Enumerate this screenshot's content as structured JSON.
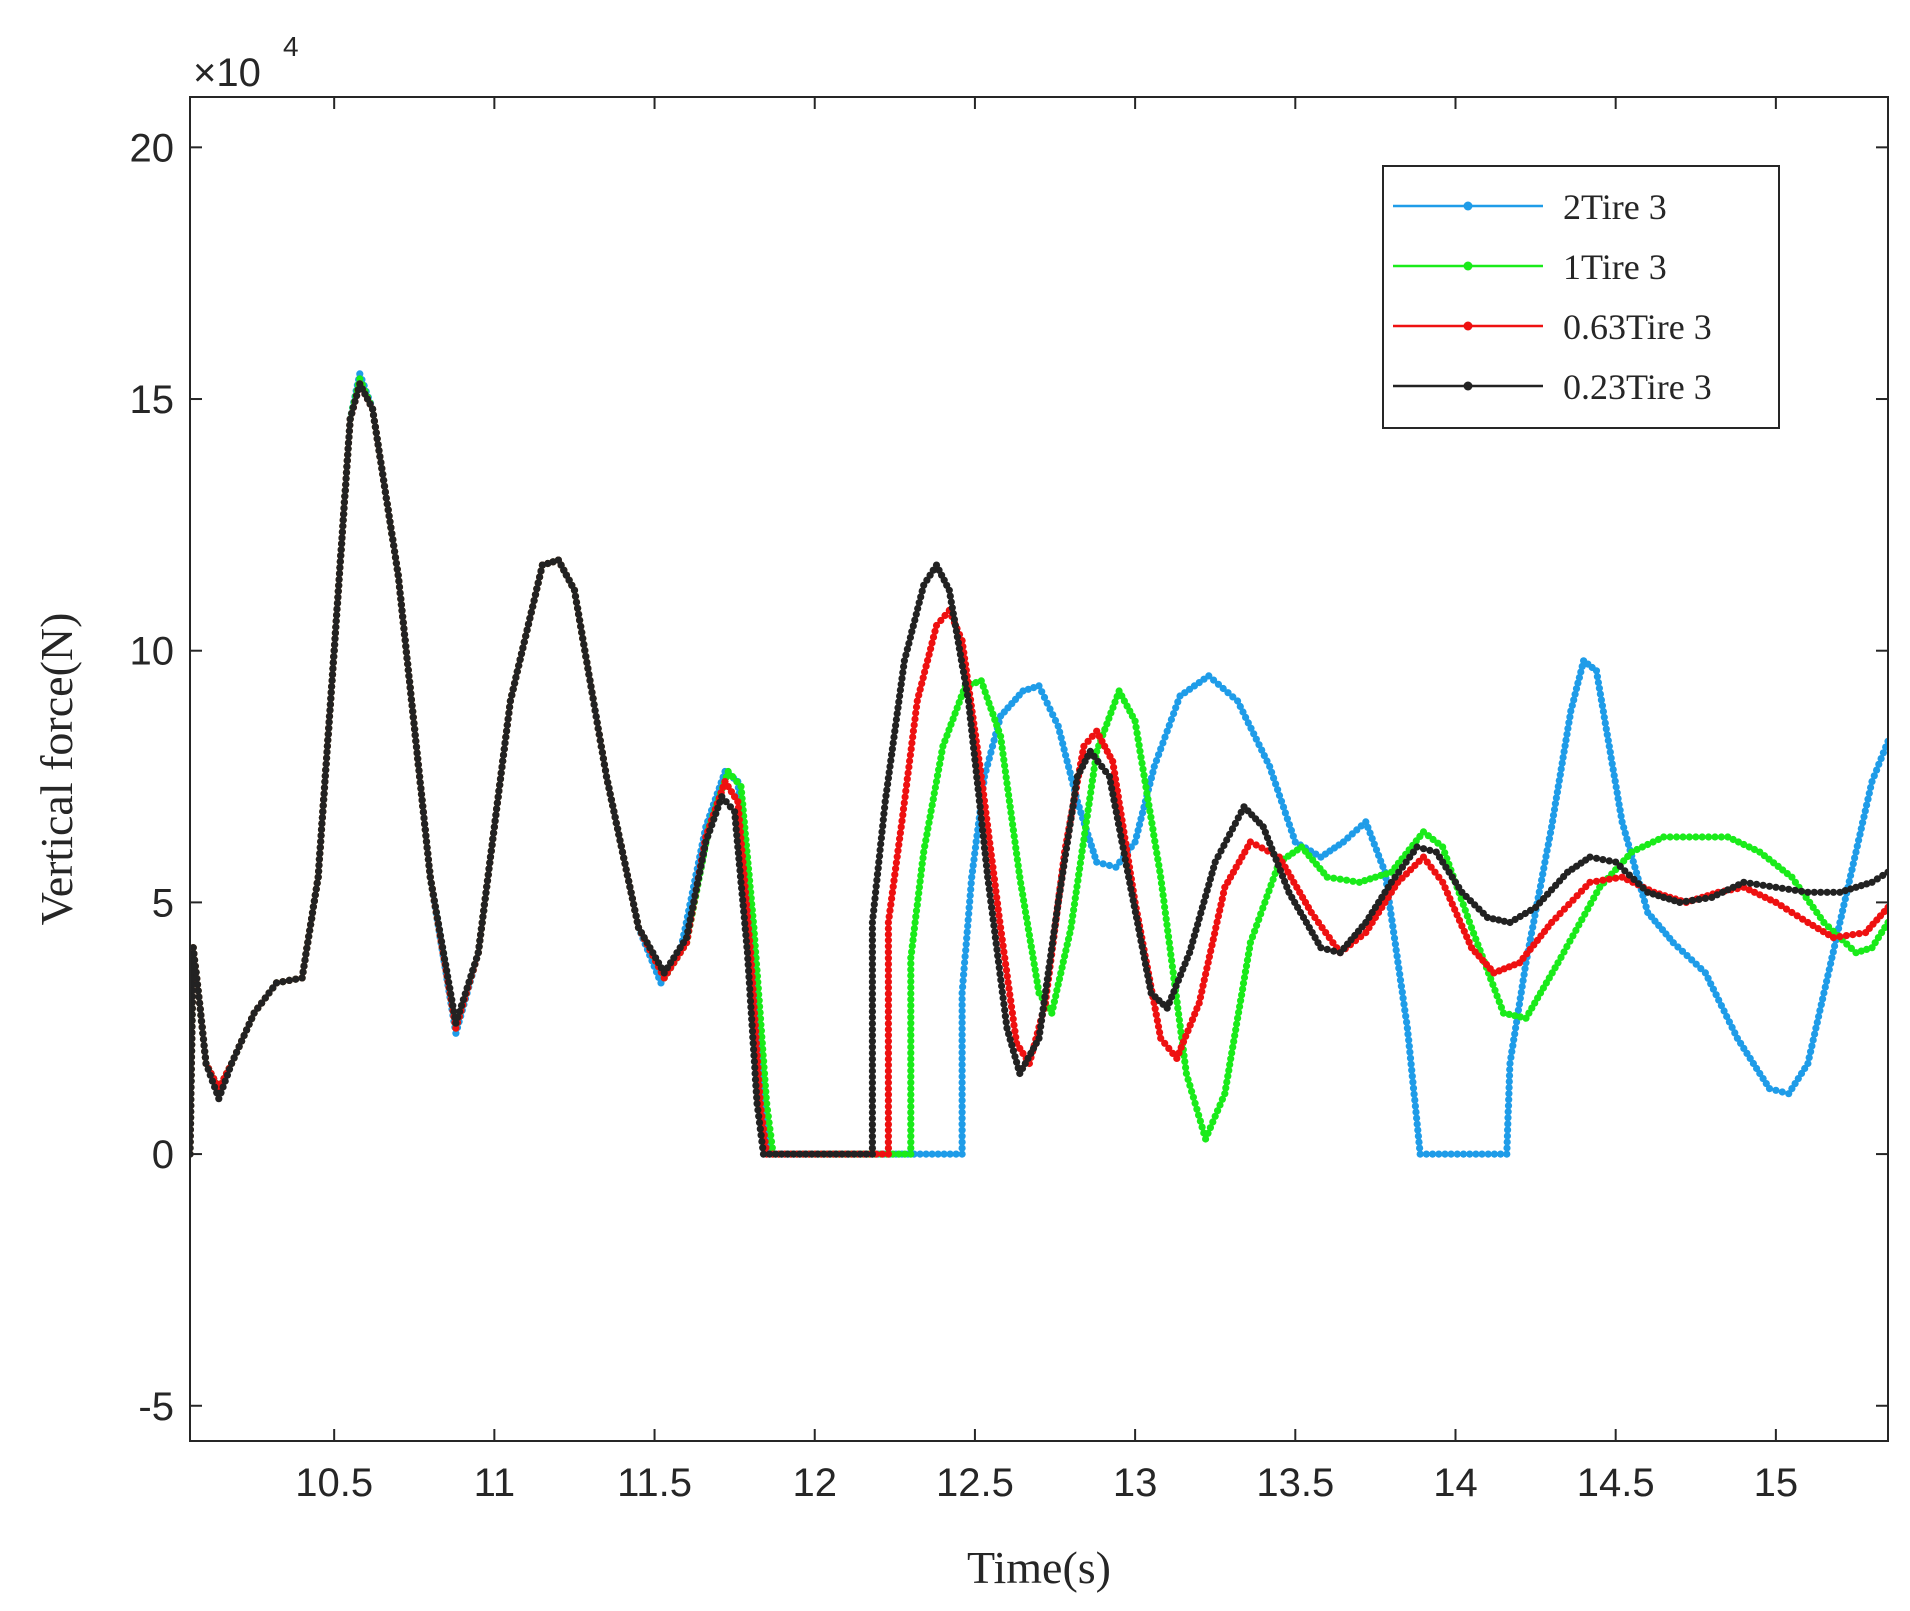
{
  "chart_data": {
    "type": "line",
    "title": "",
    "xlabel": "Time(s)",
    "ylabel": "Vertical force(N)",
    "y_multiplier": "×10",
    "y_multiplier_exponent": "4",
    "xlim": [
      10.05,
      15.35
    ],
    "ylim": [
      -5.7,
      21
    ],
    "x_ticks": [
      10.5,
      11,
      11.5,
      12,
      12.5,
      13,
      13.5,
      14,
      14.5,
      15
    ],
    "x_tick_labels": [
      "10.5",
      "11",
      "11.5",
      "12",
      "12.5",
      "13",
      "13.5",
      "14",
      "14.5",
      "15"
    ],
    "y_ticks": [
      -5,
      0,
      5,
      10,
      15,
      20
    ],
    "y_tick_labels": [
      "-5",
      "0",
      "5",
      "10",
      "15",
      "20"
    ],
    "grid": false,
    "legend_position": "top-right",
    "series": [
      {
        "name": "2Tire 3",
        "color": "#1f9ce8",
        "points": [
          [
            10.05,
            0
          ],
          [
            10.06,
            4.1
          ],
          [
            10.08,
            3.0
          ],
          [
            10.1,
            1.8
          ],
          [
            10.14,
            1.3
          ],
          [
            10.18,
            1.8
          ],
          [
            10.25,
            2.8
          ],
          [
            10.32,
            3.4
          ],
          [
            10.4,
            3.5
          ],
          [
            10.45,
            5.5
          ],
          [
            10.5,
            10
          ],
          [
            10.55,
            14.6
          ],
          [
            10.58,
            15.5
          ],
          [
            10.62,
            14.8
          ],
          [
            10.7,
            11.5
          ],
          [
            10.8,
            5.5
          ],
          [
            10.88,
            2.4
          ],
          [
            10.95,
            4
          ],
          [
            11.05,
            9
          ],
          [
            11.15,
            11.7
          ],
          [
            11.2,
            11.8
          ],
          [
            11.25,
            11.2
          ],
          [
            11.35,
            7.5
          ],
          [
            11.45,
            4.5
          ],
          [
            11.52,
            3.4
          ],
          [
            11.58,
            4
          ],
          [
            11.66,
            6.5
          ],
          [
            11.72,
            7.6
          ],
          [
            11.76,
            7.4
          ],
          [
            11.8,
            4.5
          ],
          [
            11.84,
            1
          ],
          [
            11.86,
            0
          ],
          [
            12.46,
            0
          ],
          [
            12.46,
            3.2
          ],
          [
            12.49,
            5.5
          ],
          [
            12.53,
            7.5
          ],
          [
            12.58,
            8.7
          ],
          [
            12.65,
            9.2
          ],
          [
            12.7,
            9.3
          ],
          [
            12.76,
            8.5
          ],
          [
            12.82,
            7
          ],
          [
            12.88,
            5.8
          ],
          [
            12.94,
            5.7
          ],
          [
            13.0,
            6.2
          ],
          [
            13.06,
            7.7
          ],
          [
            13.14,
            9.1
          ],
          [
            13.23,
            9.5
          ],
          [
            13.32,
            9.0
          ],
          [
            13.42,
            7.7
          ],
          [
            13.5,
            6.2
          ],
          [
            13.58,
            5.9
          ],
          [
            13.65,
            6.2
          ],
          [
            13.72,
            6.6
          ],
          [
            13.78,
            5.6
          ],
          [
            13.85,
            2.5
          ],
          [
            13.89,
            0
          ],
          [
            14.16,
            0
          ],
          [
            14.17,
            1.8
          ],
          [
            14.22,
            3.8
          ],
          [
            14.3,
            6.5
          ],
          [
            14.36,
            8.8
          ],
          [
            14.4,
            9.8
          ],
          [
            14.44,
            9.6
          ],
          [
            14.52,
            6.6
          ],
          [
            14.6,
            4.8
          ],
          [
            14.68,
            4.2
          ],
          [
            14.78,
            3.6
          ],
          [
            14.88,
            2.3
          ],
          [
            14.98,
            1.3
          ],
          [
            15.04,
            1.2
          ],
          [
            15.1,
            1.8
          ],
          [
            15.2,
            4.6
          ],
          [
            15.3,
            7.4
          ],
          [
            15.35,
            8.2
          ]
        ]
      },
      {
        "name": "1Tire 3",
        "color": "#1aeb1a",
        "points": [
          [
            10.05,
            0
          ],
          [
            10.06,
            4.1
          ],
          [
            10.08,
            3.0
          ],
          [
            10.1,
            1.8
          ],
          [
            10.14,
            1.3
          ],
          [
            10.18,
            1.8
          ],
          [
            10.25,
            2.8
          ],
          [
            10.32,
            3.4
          ],
          [
            10.4,
            3.5
          ],
          [
            10.45,
            5.5
          ],
          [
            10.5,
            10
          ],
          [
            10.55,
            14.6
          ],
          [
            10.58,
            15.4
          ],
          [
            10.62,
            14.8
          ],
          [
            10.7,
            11.5
          ],
          [
            10.8,
            5.5
          ],
          [
            10.88,
            2.5
          ],
          [
            10.95,
            4
          ],
          [
            11.05,
            9
          ],
          [
            11.15,
            11.7
          ],
          [
            11.2,
            11.8
          ],
          [
            11.25,
            11.2
          ],
          [
            11.35,
            7.5
          ],
          [
            11.45,
            4.5
          ],
          [
            11.53,
            3.5
          ],
          [
            11.6,
            4.2
          ],
          [
            11.67,
            6.5
          ],
          [
            11.73,
            7.6
          ],
          [
            11.77,
            7.3
          ],
          [
            11.81,
            4.5
          ],
          [
            11.85,
            1
          ],
          [
            11.87,
            0
          ],
          [
            12.3,
            0
          ],
          [
            12.3,
            3.9
          ],
          [
            12.34,
            6
          ],
          [
            12.4,
            8.1
          ],
          [
            12.47,
            9.3
          ],
          [
            12.52,
            9.4
          ],
          [
            12.58,
            8.3
          ],
          [
            12.64,
            5.5
          ],
          [
            12.7,
            3.2
          ],
          [
            12.74,
            2.8
          ],
          [
            12.8,
            4.5
          ],
          [
            12.88,
            8
          ],
          [
            12.95,
            9.2
          ],
          [
            13.0,
            8.6
          ],
          [
            13.08,
            5.5
          ],
          [
            13.16,
            1.6
          ],
          [
            13.22,
            0.3
          ],
          [
            13.28,
            1.2
          ],
          [
            13.36,
            4.2
          ],
          [
            13.45,
            5.8
          ],
          [
            13.52,
            6.1
          ],
          [
            13.6,
            5.5
          ],
          [
            13.7,
            5.4
          ],
          [
            13.8,
            5.6
          ],
          [
            13.9,
            6.4
          ],
          [
            13.96,
            6.1
          ],
          [
            14.05,
            4.5
          ],
          [
            14.15,
            2.8
          ],
          [
            14.22,
            2.7
          ],
          [
            14.32,
            3.8
          ],
          [
            14.45,
            5.3
          ],
          [
            14.55,
            6.0
          ],
          [
            14.65,
            6.3
          ],
          [
            14.75,
            6.3
          ],
          [
            14.85,
            6.3
          ],
          [
            14.95,
            6.0
          ],
          [
            15.05,
            5.5
          ],
          [
            15.15,
            4.6
          ],
          [
            15.25,
            4.0
          ],
          [
            15.3,
            4.1
          ],
          [
            15.35,
            4.6
          ]
        ]
      },
      {
        "name": "0.63Tire 3",
        "color": "#ee1111",
        "points": [
          [
            10.05,
            0
          ],
          [
            10.06,
            4.1
          ],
          [
            10.08,
            3.0
          ],
          [
            10.1,
            1.8
          ],
          [
            10.14,
            1.3
          ],
          [
            10.18,
            1.8
          ],
          [
            10.25,
            2.8
          ],
          [
            10.32,
            3.4
          ],
          [
            10.4,
            3.5
          ],
          [
            10.45,
            5.5
          ],
          [
            10.5,
            10
          ],
          [
            10.55,
            14.6
          ],
          [
            10.58,
            15.3
          ],
          [
            10.62,
            14.8
          ],
          [
            10.7,
            11.5
          ],
          [
            10.8,
            5.5
          ],
          [
            10.88,
            2.5
          ],
          [
            10.95,
            4
          ],
          [
            11.05,
            9
          ],
          [
            11.15,
            11.7
          ],
          [
            11.2,
            11.8
          ],
          [
            11.25,
            11.2
          ],
          [
            11.35,
            7.5
          ],
          [
            11.45,
            4.5
          ],
          [
            11.53,
            3.5
          ],
          [
            11.6,
            4.2
          ],
          [
            11.66,
            6.3
          ],
          [
            11.72,
            7.4
          ],
          [
            11.76,
            7.0
          ],
          [
            11.8,
            4
          ],
          [
            11.83,
            1
          ],
          [
            11.85,
            0
          ],
          [
            12.23,
            0
          ],
          [
            12.23,
            4.6
          ],
          [
            12.27,
            6.5
          ],
          [
            12.32,
            9
          ],
          [
            12.38,
            10.5
          ],
          [
            12.42,
            10.8
          ],
          [
            12.46,
            10.2
          ],
          [
            12.52,
            7.5
          ],
          [
            12.58,
            4.5
          ],
          [
            12.63,
            2.2
          ],
          [
            12.67,
            1.8
          ],
          [
            12.72,
            3.0
          ],
          [
            12.78,
            6.0
          ],
          [
            12.84,
            8.1
          ],
          [
            12.88,
            8.4
          ],
          [
            12.93,
            7.8
          ],
          [
            13.0,
            5.0
          ],
          [
            13.08,
            2.3
          ],
          [
            13.13,
            1.9
          ],
          [
            13.2,
            3.0
          ],
          [
            13.28,
            5.3
          ],
          [
            13.36,
            6.2
          ],
          [
            13.45,
            5.9
          ],
          [
            13.55,
            4.8
          ],
          [
            13.64,
            4.0
          ],
          [
            13.72,
            4.4
          ],
          [
            13.82,
            5.4
          ],
          [
            13.9,
            5.9
          ],
          [
            13.96,
            5.4
          ],
          [
            14.05,
            4.1
          ],
          [
            14.12,
            3.6
          ],
          [
            14.2,
            3.8
          ],
          [
            14.3,
            4.6
          ],
          [
            14.42,
            5.4
          ],
          [
            14.52,
            5.5
          ],
          [
            14.62,
            5.2
          ],
          [
            14.72,
            5.0
          ],
          [
            14.82,
            5.2
          ],
          [
            14.9,
            5.3
          ],
          [
            15.0,
            5.0
          ],
          [
            15.1,
            4.6
          ],
          [
            15.18,
            4.3
          ],
          [
            15.28,
            4.4
          ],
          [
            15.35,
            4.9
          ]
        ]
      },
      {
        "name": "0.23Tire 3",
        "color": "#222222",
        "points": [
          [
            10.05,
            0
          ],
          [
            10.06,
            4.1
          ],
          [
            10.08,
            3.0
          ],
          [
            10.1,
            1.8
          ],
          [
            10.14,
            1.1
          ],
          [
            10.18,
            1.8
          ],
          [
            10.25,
            2.8
          ],
          [
            10.32,
            3.4
          ],
          [
            10.4,
            3.5
          ],
          [
            10.45,
            5.5
          ],
          [
            10.5,
            10
          ],
          [
            10.55,
            14.6
          ],
          [
            10.58,
            15.3
          ],
          [
            10.62,
            14.8
          ],
          [
            10.7,
            11.5
          ],
          [
            10.8,
            5.5
          ],
          [
            10.88,
            2.6
          ],
          [
            10.95,
            4
          ],
          [
            11.05,
            9
          ],
          [
            11.15,
            11.7
          ],
          [
            11.2,
            11.8
          ],
          [
            11.25,
            11.2
          ],
          [
            11.35,
            7.5
          ],
          [
            11.45,
            4.5
          ],
          [
            11.53,
            3.6
          ],
          [
            11.6,
            4.3
          ],
          [
            11.66,
            6.2
          ],
          [
            11.71,
            7.1
          ],
          [
            11.75,
            6.8
          ],
          [
            11.79,
            4
          ],
          [
            11.82,
            1
          ],
          [
            11.84,
            0
          ],
          [
            12.18,
            0
          ],
          [
            12.18,
            4.6
          ],
          [
            12.22,
            7
          ],
          [
            12.28,
            9.8
          ],
          [
            12.34,
            11.3
          ],
          [
            12.38,
            11.7
          ],
          [
            12.42,
            11.2
          ],
          [
            12.48,
            9
          ],
          [
            12.54,
            5.5
          ],
          [
            12.6,
            2.5
          ],
          [
            12.64,
            1.6
          ],
          [
            12.7,
            2.3
          ],
          [
            12.76,
            5.0
          ],
          [
            12.82,
            7.5
          ],
          [
            12.86,
            8.0
          ],
          [
            12.92,
            7.5
          ],
          [
            12.98,
            5.5
          ],
          [
            13.05,
            3.2
          ],
          [
            13.1,
            2.9
          ],
          [
            13.17,
            4.0
          ],
          [
            13.25,
            5.8
          ],
          [
            13.34,
            6.9
          ],
          [
            13.4,
            6.5
          ],
          [
            13.48,
            5.2
          ],
          [
            13.58,
            4.1
          ],
          [
            13.64,
            4.0
          ],
          [
            13.72,
            4.6
          ],
          [
            13.8,
            5.4
          ],
          [
            13.88,
            6.1
          ],
          [
            13.94,
            6.0
          ],
          [
            14.02,
            5.2
          ],
          [
            14.1,
            4.7
          ],
          [
            14.17,
            4.6
          ],
          [
            14.25,
            4.9
          ],
          [
            14.35,
            5.6
          ],
          [
            14.42,
            5.9
          ],
          [
            14.5,
            5.8
          ],
          [
            14.6,
            5.2
          ],
          [
            14.7,
            5.0
          ],
          [
            14.8,
            5.1
          ],
          [
            14.9,
            5.4
          ],
          [
            15.0,
            5.3
          ],
          [
            15.1,
            5.2
          ],
          [
            15.2,
            5.2
          ],
          [
            15.3,
            5.4
          ],
          [
            15.35,
            5.6
          ]
        ]
      }
    ]
  }
}
